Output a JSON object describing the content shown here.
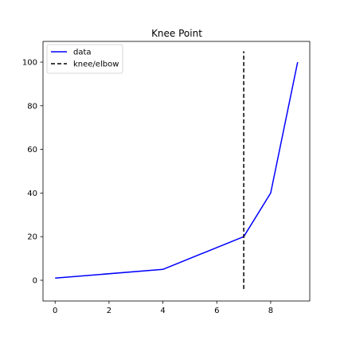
{
  "chart_data": {
    "type": "line",
    "title": "Knee Point",
    "xlabel": "",
    "ylabel": "",
    "xlim": [
      -0.45,
      9.45
    ],
    "ylim": [
      -9.5,
      109.5
    ],
    "x_ticks": [
      0,
      2,
      4,
      6,
      8
    ],
    "y_ticks": [
      0,
      20,
      40,
      60,
      80,
      100
    ],
    "grid": false,
    "legend_position": "top-left",
    "series": [
      {
        "name": "data",
        "color": "#0000ff",
        "style": "solid",
        "x": [
          0,
          4,
          7,
          8,
          9
        ],
        "y": [
          1,
          5,
          20,
          40,
          100
        ]
      }
    ],
    "vlines": [
      {
        "name": "knee/elbow",
        "color": "#000000",
        "style": "dashed",
        "x": 7,
        "ymin": -4,
        "ymax": 105
      }
    ]
  }
}
